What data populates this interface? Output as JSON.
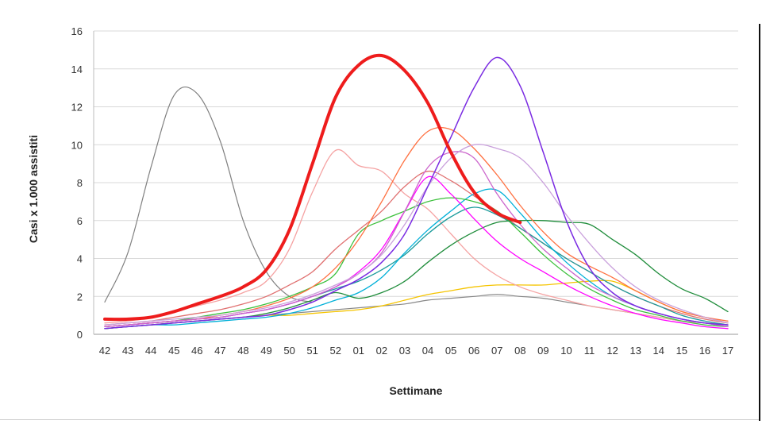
{
  "chart_data": {
    "type": "line",
    "title": "",
    "xlabel": "Settimane",
    "ylabel": "Casi x 1.000 assistiti",
    "ylim": [
      0,
      16
    ],
    "yticks": [
      "0",
      "2",
      "4",
      "6",
      "8",
      "10",
      "12",
      "14",
      "16"
    ],
    "grid": true,
    "legend": "none",
    "categories": [
      "42",
      "43",
      "44",
      "45",
      "46",
      "47",
      "48",
      "49",
      "50",
      "51",
      "52",
      "01",
      "02",
      "03",
      "04",
      "05",
      "06",
      "07",
      "08",
      "09",
      "10",
      "11",
      "12",
      "13",
      "14",
      "15",
      "16",
      "17"
    ],
    "series": [
      {
        "color": "#808080",
        "width": 1.2,
        "values": [
          1.7,
          4.3,
          8.8,
          12.6,
          12.7,
          10.2,
          6.0,
          3.3,
          2.0,
          1.7,
          null,
          null,
          null,
          null,
          null,
          null,
          null,
          null,
          null,
          null,
          null,
          null,
          null,
          null,
          null,
          null,
          null,
          null
        ]
      },
      {
        "color": "#888888",
        "width": 1.2,
        "values": [
          0.3,
          0.4,
          0.5,
          0.6,
          0.7,
          0.8,
          0.9,
          1.0,
          1.1,
          1.2,
          1.3,
          1.4,
          1.5,
          1.6,
          1.8,
          1.9,
          2.0,
          2.1,
          2.0,
          1.9,
          1.7,
          1.5,
          1.3,
          1.1,
          0.9,
          0.7,
          0.6,
          0.5
        ]
      },
      {
        "color": "#f5c400",
        "width": 1.3,
        "values": [
          0.3,
          0.4,
          0.5,
          0.6,
          0.7,
          0.8,
          0.9,
          1.0,
          1.0,
          1.1,
          1.2,
          1.3,
          1.5,
          1.8,
          2.1,
          2.3,
          2.5,
          2.6,
          2.6,
          2.6,
          2.7,
          2.8,
          2.8,
          2.3,
          1.7,
          1.2,
          0.9,
          0.6
        ]
      },
      {
        "color": "#f5a3a3",
        "width": 1.3,
        "values": [
          0.6,
          0.7,
          0.9,
          1.2,
          1.5,
          1.8,
          2.2,
          2.8,
          4.5,
          7.5,
          9.7,
          8.9,
          8.6,
          7.4,
          6.6,
          5.3,
          4.0,
          3.1,
          2.5,
          2.1,
          1.8,
          1.5,
          1.3,
          1.1,
          0.9,
          0.7,
          0.6,
          0.5
        ]
      },
      {
        "color": "#e07070",
        "width": 1.3,
        "values": [
          0.5,
          0.6,
          0.7,
          0.9,
          1.1,
          1.3,
          1.6,
          2.0,
          2.6,
          3.3,
          4.5,
          5.5,
          6.5,
          7.8,
          8.6,
          8.1,
          7.3,
          6.5,
          5.6,
          4.8,
          4.0,
          3.3,
          2.6,
          2.0,
          1.5,
          1.1,
          0.8,
          0.6
        ]
      },
      {
        "color": "#1a9b9b",
        "width": 1.3,
        "values": [
          0.4,
          0.5,
          0.6,
          0.7,
          0.8,
          0.9,
          1.1,
          1.3,
          1.6,
          2.0,
          2.4,
          2.8,
          3.4,
          4.2,
          5.3,
          6.2,
          6.7,
          6.3,
          5.6,
          4.8,
          4.0,
          3.3,
          2.6,
          2.0,
          1.5,
          1.0,
          0.7,
          0.5
        ]
      },
      {
        "color": "#00b0d8",
        "width": 1.3,
        "values": [
          0.3,
          0.4,
          0.5,
          0.5,
          0.6,
          0.7,
          0.8,
          0.9,
          1.1,
          1.4,
          1.8,
          2.2,
          3.0,
          4.3,
          5.5,
          6.5,
          7.4,
          7.6,
          6.4,
          5.0,
          3.8,
          2.8,
          2.0,
          1.5,
          1.1,
          0.8,
          0.6,
          0.4
        ]
      },
      {
        "color": "#3cc03c",
        "width": 1.3,
        "values": [
          0.4,
          0.5,
          0.6,
          0.7,
          0.9,
          1.1,
          1.3,
          1.6,
          2.0,
          2.5,
          3.2,
          5.3,
          6.0,
          6.5,
          7.0,
          7.2,
          7.0,
          6.5,
          5.4,
          4.2,
          3.2,
          2.4,
          1.8,
          1.3,
          1.0,
          0.7,
          0.5,
          0.4
        ]
      },
      {
        "color": "#1e8c3a",
        "width": 1.3,
        "values": [
          0.3,
          0.4,
          0.5,
          0.6,
          0.7,
          0.8,
          0.9,
          1.1,
          1.4,
          1.8,
          2.2,
          1.9,
          2.2,
          2.8,
          3.8,
          4.7,
          5.4,
          5.9,
          6.0,
          6.0,
          5.9,
          5.8,
          5.0,
          4.2,
          3.2,
          2.4,
          1.9,
          1.2
        ]
      },
      {
        "color": "#ff7040",
        "width": 1.3,
        "values": [
          0.4,
          0.5,
          0.6,
          0.7,
          0.8,
          1.0,
          1.2,
          1.5,
          1.9,
          2.5,
          3.5,
          5.0,
          7.0,
          9.2,
          10.7,
          10.8,
          9.8,
          8.4,
          6.8,
          5.4,
          4.3,
          3.6,
          3.0,
          2.3,
          1.7,
          1.2,
          0.9,
          0.7
        ]
      },
      {
        "color": "#ff00ff",
        "width": 1.3,
        "values": [
          0.4,
          0.5,
          0.6,
          0.7,
          0.8,
          0.9,
          1.1,
          1.3,
          1.6,
          2.0,
          2.5,
          3.3,
          4.5,
          6.5,
          8.3,
          7.4,
          6.1,
          4.9,
          4.0,
          3.3,
          2.6,
          2.0,
          1.5,
          1.1,
          0.8,
          0.6,
          0.4,
          0.3
        ]
      },
      {
        "color": "#cc66cc",
        "width": 1.3,
        "values": [
          0.4,
          0.5,
          0.6,
          0.7,
          0.8,
          0.9,
          1.1,
          1.3,
          1.6,
          2.0,
          2.5,
          3.2,
          4.3,
          6.5,
          8.8,
          9.6,
          9.3,
          7.4,
          5.8,
          4.5,
          3.5,
          2.6,
          2.0,
          1.5,
          1.1,
          0.8,
          0.6,
          0.4
        ]
      },
      {
        "color": "#c9a0dc",
        "width": 1.3,
        "values": [
          0.5,
          0.6,
          0.7,
          0.8,
          0.9,
          1.0,
          1.2,
          1.4,
          1.7,
          2.1,
          2.6,
          3.2,
          4.2,
          5.8,
          7.8,
          9.3,
          10.0,
          9.8,
          9.3,
          8.0,
          6.3,
          4.8,
          3.5,
          2.5,
          1.8,
          1.3,
          0.9,
          0.6
        ]
      },
      {
        "color": "#7a2be2",
        "width": 1.5,
        "values": [
          0.3,
          0.4,
          0.5,
          0.6,
          0.7,
          0.8,
          0.9,
          1.0,
          1.3,
          1.7,
          2.3,
          2.9,
          3.8,
          5.3,
          7.8,
          10.4,
          13.0,
          14.6,
          13.1,
          9.6,
          6.0,
          3.5,
          2.2,
          1.5,
          1.1,
          0.8,
          0.6,
          0.5
        ]
      },
      {
        "color": "#ee1c1c",
        "width": 4,
        "values": [
          0.8,
          0.8,
          0.9,
          1.2,
          1.6,
          2.0,
          2.5,
          3.4,
          5.5,
          9.0,
          12.5,
          14.2,
          14.7,
          13.9,
          12.2,
          9.6,
          7.5,
          6.4,
          5.9,
          null,
          null,
          null,
          null,
          null,
          null,
          null,
          null,
          null
        ]
      }
    ]
  }
}
